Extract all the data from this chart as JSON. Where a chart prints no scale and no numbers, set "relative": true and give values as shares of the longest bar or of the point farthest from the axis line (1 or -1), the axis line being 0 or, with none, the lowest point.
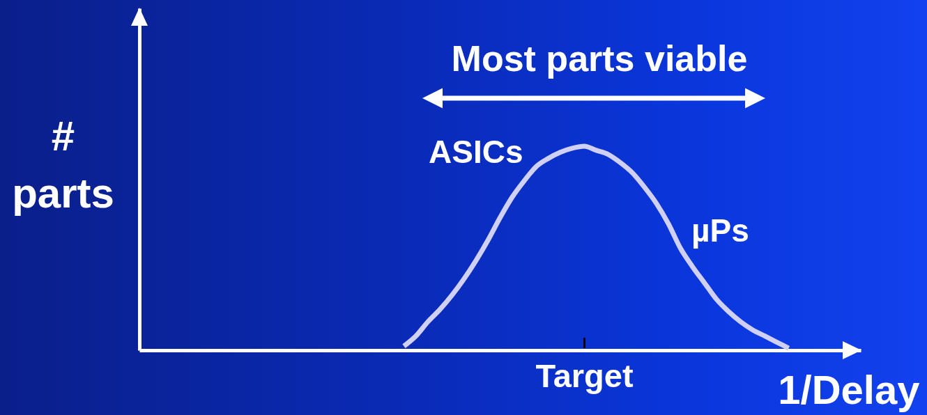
{
  "chart_data": {
    "type": "line",
    "relative": true,
    "xlabel": "1/Delay",
    "ylabel": "# parts",
    "annotations": [
      "Most parts viable",
      "ASICs",
      "µPs",
      "Target"
    ],
    "categories": [
      null,
      null,
      null,
      null,
      null,
      null,
      null,
      null,
      null,
      null,
      null,
      null,
      null,
      null,
      null,
      null,
      null,
      null,
      null,
      null,
      null,
      null,
      null,
      null,
      null,
      null,
      null,
      null,
      null,
      null,
      null,
      null,
      null,
      null,
      null,
      null,
      null,
      null,
      null,
      null,
      null,
      null,
      null,
      null,
      null,
      null,
      null,
      null,
      null,
      null,
      null,
      null,
      null,
      null,
      null,
      null,
      null,
      null,
      null,
      null,
      null
    ],
    "series": [
      {
        "color": "#d0d0f4",
        "values": [
          null,
          null,
          null,
          null,
          null,
          null,
          null,
          null,
          null,
          null,
          null,
          null,
          null,
          null,
          null,
          null,
          null,
          null,
          null,
          null,
          null,
          null,
          0.02,
          0.07,
          0.14,
          0.2,
          0.27,
          0.35,
          0.44,
          0.54,
          0.65,
          0.75,
          0.83,
          0.9,
          0.94,
          0.97,
          0.99,
          1,
          0.98,
          0.96,
          0.92,
          0.87,
          0.8,
          0.72,
          0.62,
          0.5,
          0.41,
          0.33,
          0.25,
          0.19,
          0.14,
          0.1,
          0.07,
          0.04,
          0.01,
          null,
          null,
          null,
          null,
          null,
          null
        ]
      }
    ]
  }
}
